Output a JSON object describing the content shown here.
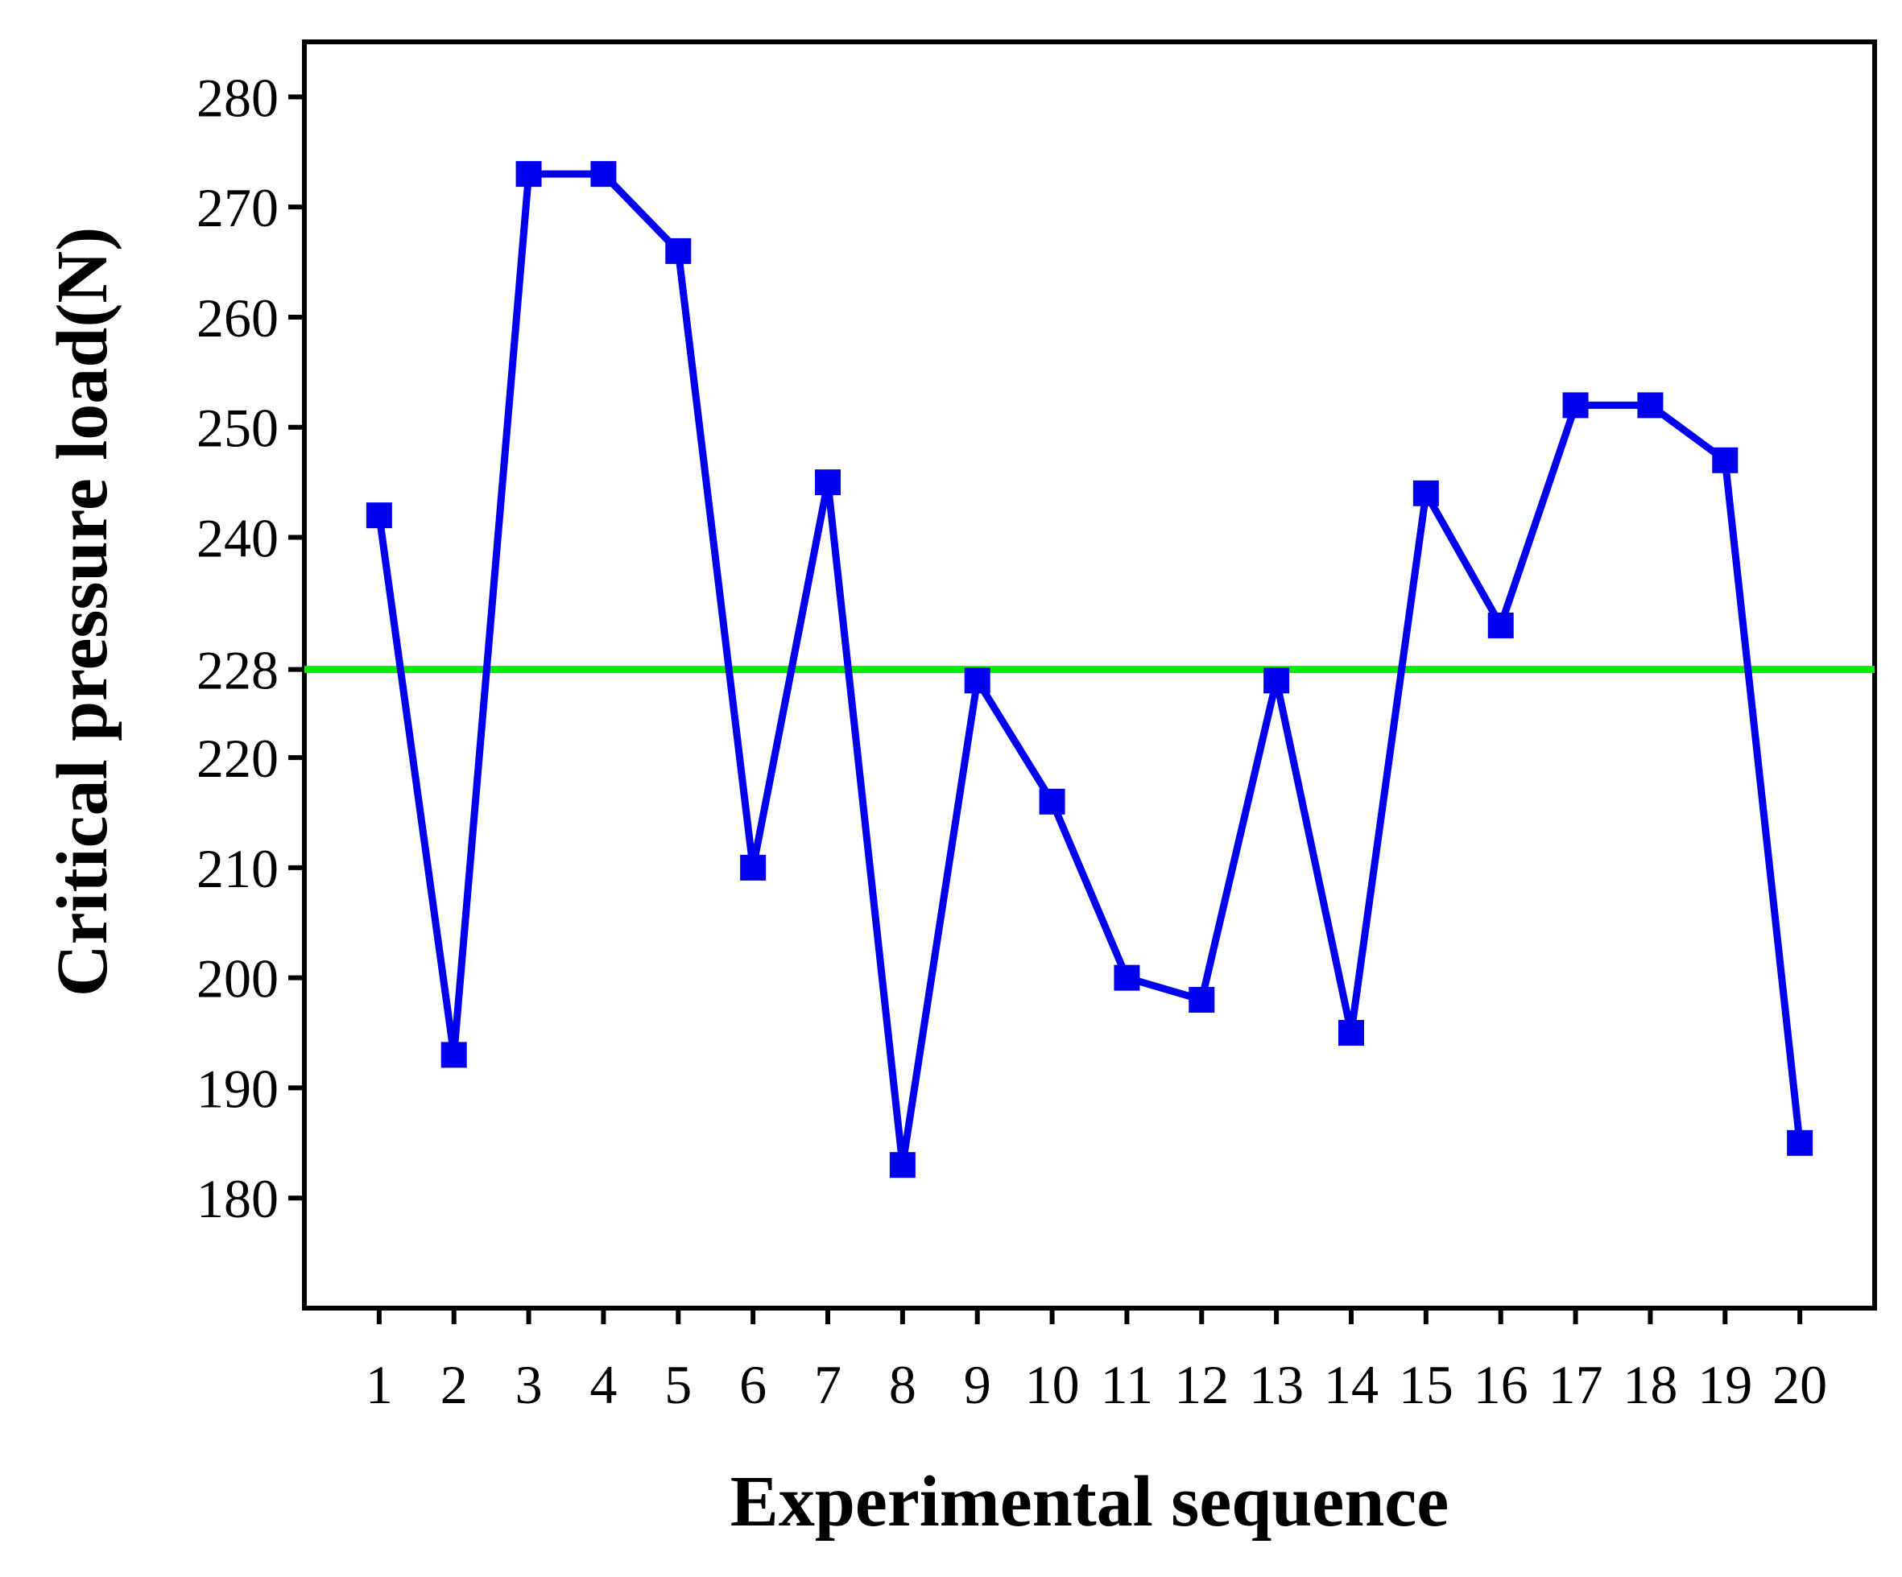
{
  "chart_data": {
    "type": "line",
    "xlabel": "Experimental sequence",
    "ylabel": "Critical pressure load(N)",
    "x": [
      1,
      2,
      3,
      4,
      5,
      6,
      7,
      8,
      9,
      10,
      11,
      12,
      13,
      14,
      15,
      16,
      17,
      18,
      19,
      20
    ],
    "xticks": [
      "1",
      "2",
      "3",
      "4",
      "5",
      "6",
      "7",
      "8",
      "9",
      "10",
      "11",
      "12",
      "13",
      "14",
      "15",
      "16",
      "17",
      "18",
      "19",
      "20"
    ],
    "xlim": [
      0,
      21
    ],
    "yticks": [
      180,
      190,
      200,
      210,
      220,
      228,
      240,
      250,
      260,
      270,
      280
    ],
    "ylim": [
      170,
      285
    ],
    "grid": false,
    "series": [
      {
        "color": "#0000ee",
        "marker": "square",
        "values": [
          242,
          193,
          273,
          273,
          266,
          210,
          245,
          183,
          227,
          216,
          200,
          198,
          227,
          195,
          244,
          232,
          252,
          252,
          247,
          185
        ]
      }
    ],
    "reference_lines": [
      {
        "y": 228,
        "color": "#00ee00"
      }
    ],
    "frame_color": "#000000"
  }
}
